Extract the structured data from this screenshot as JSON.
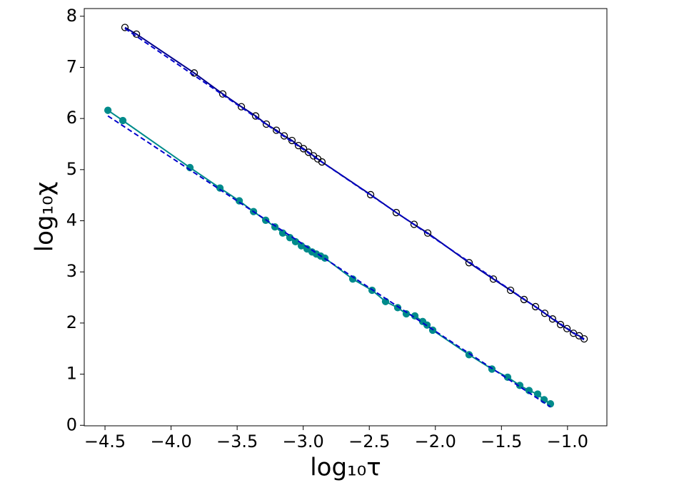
{
  "chart_data": {
    "type": "line",
    "xlabel": "log₁₀τ",
    "ylabel": "log₁₀χ",
    "xlim": [
      -4.657,
      -0.702
    ],
    "ylim": [
      -0.01,
      8.15
    ],
    "xticks": [
      {
        "value": -4.5,
        "label": "−4.5"
      },
      {
        "value": -4.0,
        "label": "−4.0"
      },
      {
        "value": -3.5,
        "label": "−3.5"
      },
      {
        "value": -3.0,
        "label": "−3.0"
      },
      {
        "value": -2.5,
        "label": "−2.5"
      },
      {
        "value": -2.0,
        "label": "−2.0"
      },
      {
        "value": -1.5,
        "label": "−1.5"
      },
      {
        "value": -1.0,
        "label": "−1.0"
      }
    ],
    "yticks": [
      0,
      1,
      2,
      3,
      4,
      5,
      6,
      7,
      8
    ],
    "series": [
      {
        "color": "#00008b",
        "marker": "open",
        "marker_edge": "#000000",
        "x": [
          -4.349,
          -4.262,
          -3.825,
          -3.609,
          -3.468,
          -3.36,
          -3.279,
          -3.203,
          -3.144,
          -3.085,
          -3.036,
          -2.998,
          -2.96,
          -2.922,
          -2.89,
          -2.858,
          -2.49,
          -2.296,
          -2.161,
          -2.058,
          -1.745,
          -1.561,
          -1.431,
          -1.329,
          -1.242,
          -1.172,
          -1.113,
          -1.053,
          -1.004,
          -0.955,
          -0.912,
          -0.874
        ],
        "values": [
          7.78,
          7.65,
          6.89,
          6.48,
          6.23,
          6.05,
          5.89,
          5.77,
          5.66,
          5.57,
          5.47,
          5.41,
          5.34,
          5.27,
          5.21,
          5.15,
          4.51,
          4.16,
          3.93,
          3.76,
          3.18,
          2.86,
          2.64,
          2.46,
          2.32,
          2.19,
          2.08,
          1.97,
          1.89,
          1.8,
          1.75,
          1.69
        ]
      },
      {
        "color": "#0000cc",
        "dashed": true,
        "x": [
          -4.349,
          -0.874
        ],
        "values": [
          7.76,
          1.67
        ]
      },
      {
        "color": "#008b8b",
        "marker": "filled",
        "x": [
          -4.478,
          -4.365,
          -3.857,
          -3.63,
          -3.484,
          -3.376,
          -3.284,
          -3.214,
          -3.155,
          -3.101,
          -3.058,
          -3.014,
          -2.971,
          -2.933,
          -2.901,
          -2.868,
          -2.836,
          -2.625,
          -2.479,
          -2.377,
          -2.285,
          -2.22,
          -2.155,
          -2.096,
          -2.063,
          -2.02,
          -1.745,
          -1.572,
          -1.453,
          -1.361,
          -1.291,
          -1.226,
          -1.177,
          -1.129
        ],
        "values": [
          6.16,
          5.96,
          5.04,
          4.64,
          4.39,
          4.18,
          4.01,
          3.88,
          3.76,
          3.67,
          3.59,
          3.51,
          3.45,
          3.39,
          3.35,
          3.31,
          3.27,
          2.86,
          2.64,
          2.42,
          2.3,
          2.18,
          2.14,
          2.03,
          1.96,
          1.86,
          1.38,
          1.1,
          0.94,
          0.78,
          0.68,
          0.61,
          0.5,
          0.42
        ]
      },
      {
        "color": "#0000cc",
        "dashed": true,
        "x": [
          -4.478,
          -1.129
        ],
        "values": [
          6.05,
          0.36
        ]
      }
    ]
  }
}
